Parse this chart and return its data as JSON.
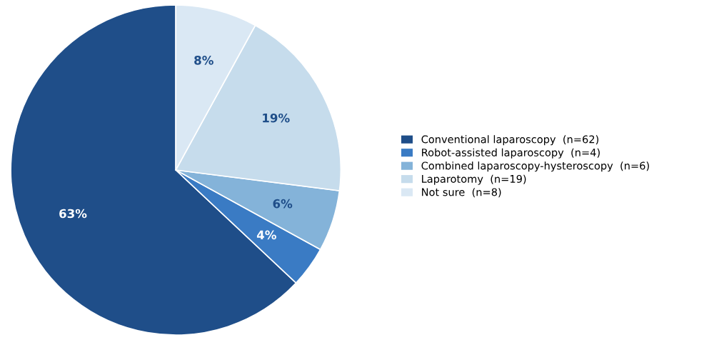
{
  "chart_data": {
    "type": "pie",
    "categories": [
      "Conventional laparoscopy  (n=62)",
      "Robot-assisted laparoscopy  (n=4)",
      "Combined laparoscopy-hysteroscopy  (n=6)",
      "Laparotomy  (n=19)",
      "Not sure  (n=8)"
    ],
    "values": [
      63,
      4,
      6,
      19,
      8
    ],
    "value_labels": [
      "63%",
      "4%",
      "6%",
      "19%",
      "8%"
    ],
    "colors": [
      "#1f4e89",
      "#3a7bc4",
      "#84b3d9",
      "#c6dcec",
      "#dae8f4"
    ],
    "legend": "right"
  }
}
